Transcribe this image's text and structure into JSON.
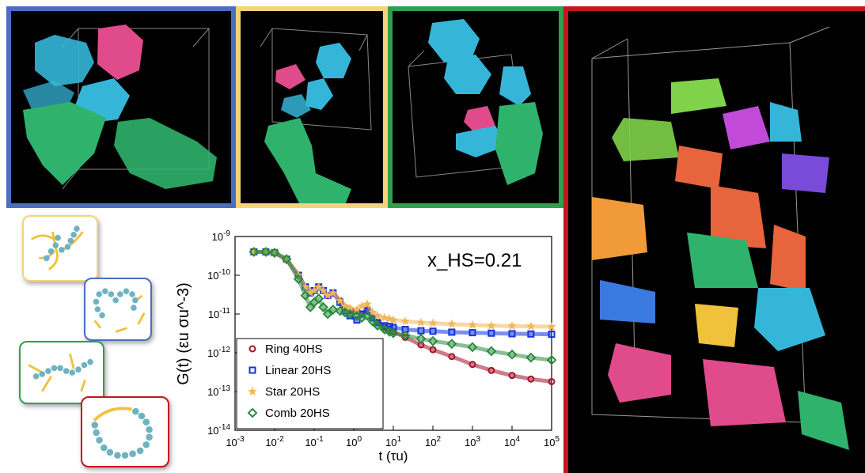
{
  "colors": {
    "blue_frame": "#4a6fc0",
    "yellow_frame": "#f4d477",
    "green_frame": "#2da14c",
    "red_frame": "#c4161c",
    "bead": "#6fb3c0",
    "side_chain": "#f0c13a",
    "cluster_blue": "#35b6d8",
    "cluster_pink": "#e04b8c",
    "cluster_green": "#2fb36c"
  },
  "chart_data": {
    "type": "scatter",
    "annotation": "x_HS=0.21",
    "xlabel": "t (τu)",
    "ylabel": "G(t) (εu σu^-3)",
    "xscale": "log",
    "yscale": "log",
    "xlim": [
      0.001,
      100000
    ],
    "ylim": [
      1e-14,
      1e-09
    ],
    "x_ticks": [
      "10-3",
      "10-2",
      "10-1",
      "100",
      "101",
      "102",
      "103",
      "104",
      "105"
    ],
    "y_ticks": [
      "10-14",
      "10-13",
      "10-12",
      "10-11",
      "10-10",
      "10-9"
    ],
    "legend_position": "bottom-left",
    "series": [
      {
        "name": "Ring 40HS",
        "color": "#a3132a",
        "marker": "circle",
        "x": [
          0.003,
          0.006,
          0.01,
          0.02,
          0.04,
          0.06,
          0.08,
          0.1,
          0.13,
          0.17,
          0.22,
          0.3,
          0.45,
          0.6,
          0.8,
          1.2,
          1.6,
          2.2,
          3,
          4,
          6,
          8,
          10,
          20,
          50,
          100,
          300,
          1000,
          3000,
          10000,
          30000,
          100000
        ],
        "y": [
          4e-10,
          4e-10,
          3.8e-10,
          2.6e-10,
          1e-10,
          5e-11,
          3.5e-11,
          4e-11,
          5e-11,
          4e-11,
          3e-11,
          3.5e-11,
          2.2e-11,
          1.5e-11,
          1.3e-11,
          1.2e-11,
          1e-11,
          1.3e-11,
          8e-12,
          6e-12,
          4.5e-12,
          4e-12,
          3.5e-12,
          2.5e-12,
          1.6e-12,
          1.2e-12,
          8e-13,
          5e-13,
          3.5e-13,
          2.6e-13,
          2.1e-13,
          1.8e-13
        ]
      },
      {
        "name": "Linear 20HS",
        "color": "#1133dd",
        "marker": "square",
        "x": [
          0.003,
          0.006,
          0.01,
          0.02,
          0.04,
          0.06,
          0.08,
          0.1,
          0.13,
          0.17,
          0.22,
          0.3,
          0.45,
          0.6,
          0.8,
          1.2,
          1.6,
          2.2,
          3,
          4,
          6,
          8,
          10,
          20,
          50,
          100,
          300,
          1000,
          3000,
          10000,
          30000,
          100000
        ],
        "y": [
          4e-10,
          4e-10,
          3.8e-10,
          2.6e-10,
          1e-10,
          5e-11,
          3.5e-11,
          4e-11,
          5e-11,
          4e-11,
          3e-11,
          3.5e-11,
          2e-11,
          1.2e-11,
          9e-12,
          7e-12,
          1e-11,
          1.2e-11,
          8e-12,
          6e-12,
          5e-12,
          4.8e-12,
          4.5e-12,
          4e-12,
          3.7e-12,
          3.6e-12,
          3.4e-12,
          3.3e-12,
          3.2e-12,
          3.1e-12,
          3.05e-12,
          3e-12
        ]
      },
      {
        "name": "Star 20HS",
        "color": "#f0b85a",
        "marker": "star",
        "x": [
          0.003,
          0.006,
          0.01,
          0.02,
          0.04,
          0.06,
          0.08,
          0.1,
          0.13,
          0.17,
          0.22,
          0.3,
          0.45,
          0.6,
          0.8,
          1.2,
          1.6,
          2.2,
          3,
          4,
          6,
          8,
          10,
          20,
          50,
          100,
          300,
          1000,
          3000,
          10000,
          30000,
          100000
        ],
        "y": [
          4e-10,
          4e-10,
          3.8e-10,
          2.6e-10,
          1e-10,
          5e-11,
          3.5e-11,
          4e-11,
          5e-11,
          4e-11,
          3e-11,
          3.5e-11,
          2.2e-11,
          1.6e-11,
          1.4e-11,
          1.3e-11,
          1.6e-11,
          1.8e-11,
          1.1e-11,
          9e-12,
          8e-12,
          7.5e-12,
          7e-12,
          6.5e-12,
          6e-12,
          5.8e-12,
          5.5e-12,
          5.2e-12,
          5e-12,
          4.9e-12,
          4.8e-12,
          4.7e-12
        ]
      },
      {
        "name": "Comb 20HS",
        "color": "#2a8a3c",
        "marker": "diamond",
        "x": [
          0.003,
          0.006,
          0.01,
          0.02,
          0.04,
          0.06,
          0.08,
          0.1,
          0.13,
          0.17,
          0.22,
          0.3,
          0.45,
          0.6,
          0.8,
          1.2,
          1.6,
          2.2,
          3,
          4,
          6,
          8,
          10,
          20,
          50,
          100,
          300,
          1000,
          3000,
          10000,
          30000,
          100000
        ],
        "y": [
          4e-10,
          4e-10,
          3.8e-10,
          2.6e-10,
          8e-11,
          3e-11,
          1.5e-11,
          2e-11,
          2.5e-11,
          1.5e-11,
          1e-11,
          1.3e-11,
          1.2e-11,
          1.1e-11,
          1e-11,
          9e-12,
          8e-12,
          9e-12,
          6.5e-12,
          5e-12,
          4e-12,
          3.5e-12,
          3.2e-12,
          2.8e-12,
          2.3e-12,
          2e-12,
          1.7e-12,
          1.4e-12,
          1.1e-12,
          9e-13,
          7.5e-13,
          6.5e-13
        ]
      }
    ]
  }
}
